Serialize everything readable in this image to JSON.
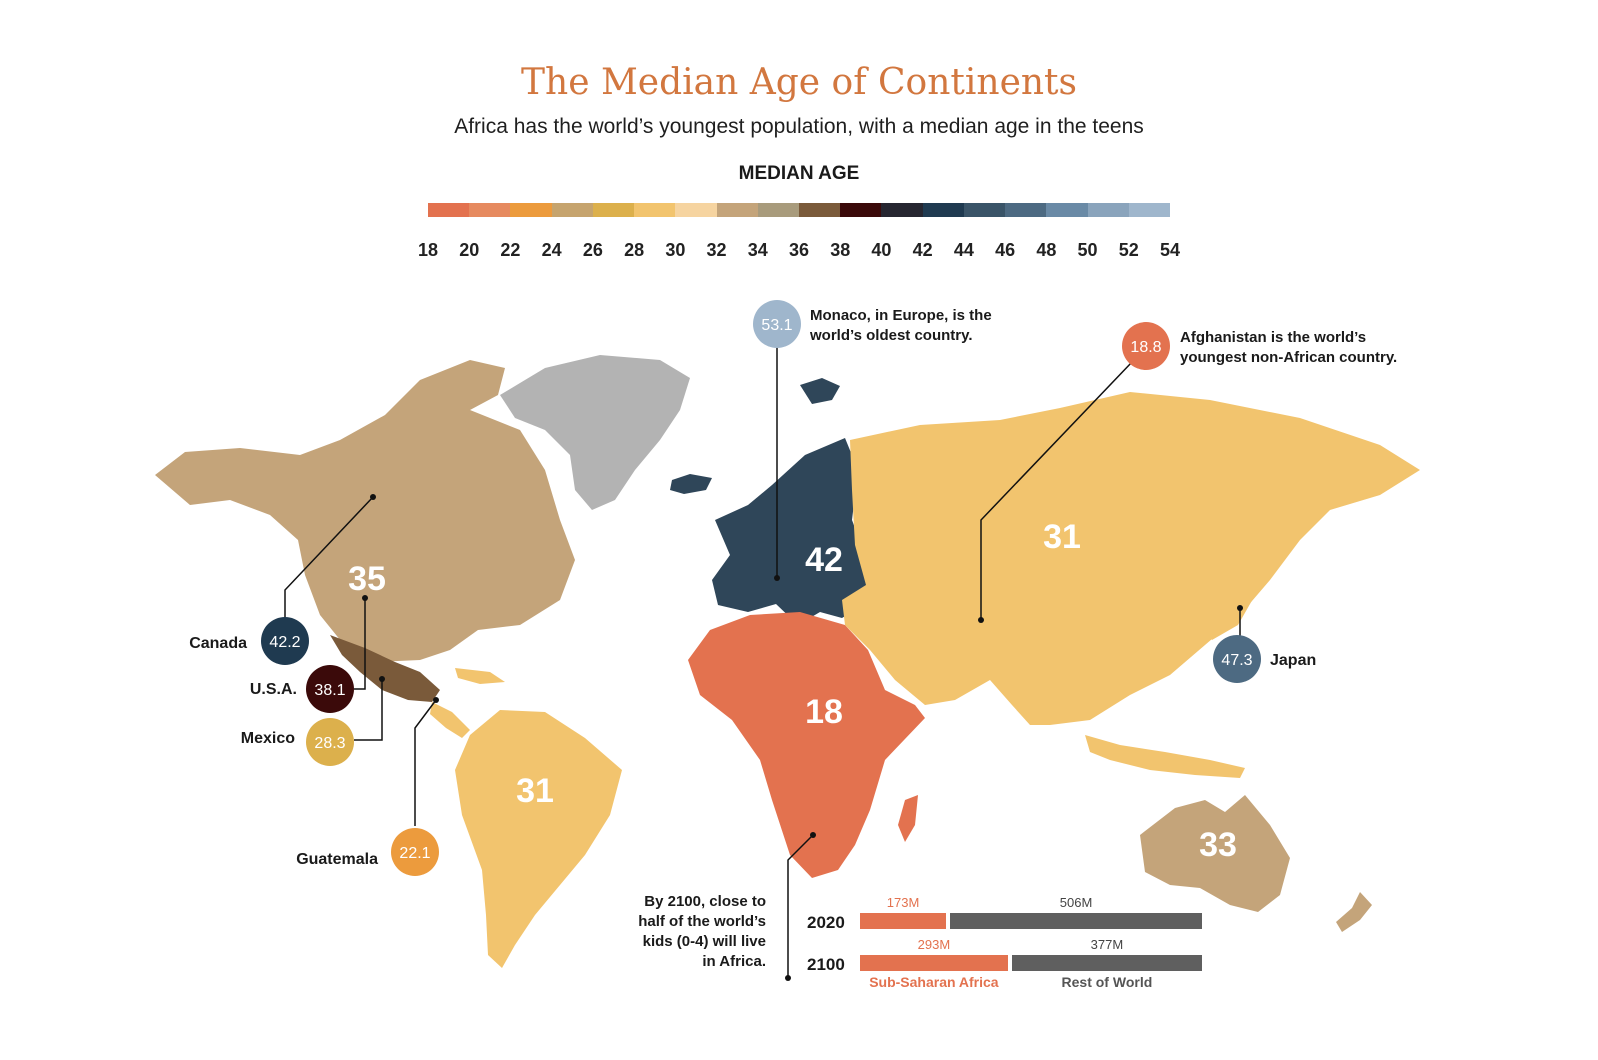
{
  "title": "The Median Age of Continents",
  "subtitle": "Africa has the world’s youngest population, with a median age in the teens",
  "legend": {
    "title": "MEDIAN AGE",
    "ticks": [
      "18",
      "20",
      "22",
      "24",
      "26",
      "28",
      "30",
      "32",
      "34",
      "36",
      "38",
      "40",
      "42",
      "44",
      "46",
      "48",
      "50",
      "52",
      "54"
    ],
    "colors": [
      "#e3724f",
      "#e68a5f",
      "#ec9b3d",
      "#c6a46e",
      "#dcb04c",
      "#f2c46e",
      "#f6d4a0",
      "#c4a47a",
      "#a89b7c",
      "#7a5a3a",
      "#3b0a0a",
      "#262630",
      "#1f3a50",
      "#3a5468",
      "#4d6a82",
      "#6a8aa6",
      "#8aa4bc",
      "#9fb6cc"
    ]
  },
  "chart_data": {
    "type": "choropleth",
    "title": "The Median Age of Continents",
    "subtitle": "Africa has the world’s youngest population, with a median age in the teens",
    "legend_title": "MEDIAN AGE",
    "legend_range": [
      18,
      54
    ],
    "regions": [
      {
        "name": "North America",
        "value": "35",
        "color": "#c4a47a"
      },
      {
        "name": "South America",
        "value": "31",
        "color": "#f2c46e"
      },
      {
        "name": "Europe",
        "value": "42",
        "color": "#2f4659"
      },
      {
        "name": "Africa",
        "value": "18",
        "color": "#e3724f"
      },
      {
        "name": "Asia",
        "value": "31",
        "color": "#f2c46e"
      },
      {
        "name": "Oceania",
        "value": "33",
        "color": "#c4a47a"
      }
    ],
    "callouts": [
      {
        "name": "Monaco",
        "value": "53.1",
        "color": "#9fb6cc",
        "note": [
          "Monaco, in Europe, is the",
          "world’s oldest country."
        ]
      },
      {
        "name": "Afghanistan",
        "value": "18.8",
        "color": "#e3724f",
        "note": [
          "Afghanistan is the world’s",
          "youngest non-African country."
        ]
      },
      {
        "name": "Canada",
        "value": "42.2",
        "color": "#1f3a50",
        "label": "Canada"
      },
      {
        "name": "U.S.A.",
        "value": "38.1",
        "color": "#3b0a0a",
        "label": "U.S.A."
      },
      {
        "name": "Mexico",
        "value": "28.3",
        "color": "#dcb04c",
        "label": "Mexico"
      },
      {
        "name": "Guatemala",
        "value": "22.1",
        "color": "#ec9b3d",
        "label": "Guatemala"
      },
      {
        "name": "Japan",
        "value": "47.3",
        "color": "#4d6a82",
        "label": "Japan"
      }
    ],
    "population": {
      "note": [
        "By 2100, close to",
        "half of the world’s",
        "kids (0-4) will live",
        "in Africa."
      ],
      "categories": [
        "2020",
        "2100"
      ],
      "series": [
        {
          "name": "Sub-Saharan Africa",
          "color": "#e3724f",
          "values": [
            173,
            293
          ],
          "labels": [
            "173M",
            "293M"
          ]
        },
        {
          "name": "Rest of World",
          "color": "#5f5f5f",
          "values": [
            506,
            377
          ],
          "labels": [
            "506M",
            "377M"
          ]
        }
      ]
    }
  }
}
